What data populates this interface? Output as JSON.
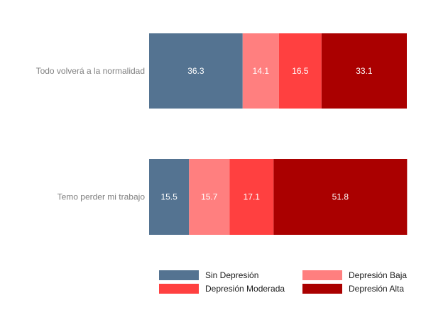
{
  "chart_data": {
    "type": "bar",
    "orientation": "horizontal",
    "stacked": true,
    "title": "",
    "xlabel": "",
    "ylabel": "",
    "xlim": [
      0,
      100
    ],
    "grid": false,
    "legend_position": "bottom",
    "categories": [
      "Todo volverá a la normalidad",
      "Temo perder mi trabajo"
    ],
    "series": [
      {
        "name": "Sin Depresión",
        "color": "#547391",
        "values": [
          36.3,
          15.5
        ],
        "labels": [
          "36.3",
          "15.5"
        ]
      },
      {
        "name": "Depresión Baja",
        "color": "#FF7F7F",
        "values": [
          14.1,
          15.7
        ],
        "labels": [
          "14.1",
          "15.7"
        ]
      },
      {
        "name": "Depresión Moderada",
        "color": "#FF4040",
        "values": [
          16.5,
          17.1
        ],
        "labels": [
          "16.5",
          "17.1"
        ]
      },
      {
        "name": "Depresión Alta",
        "color": "#AA0000",
        "values": [
          33.1,
          51.8
        ],
        "labels": [
          "33.1",
          "51.8"
        ]
      }
    ],
    "legend_order": [
      "Sin Depresión",
      "Depresión Baja",
      "Depresión Moderada",
      "Depresión Alta"
    ]
  }
}
